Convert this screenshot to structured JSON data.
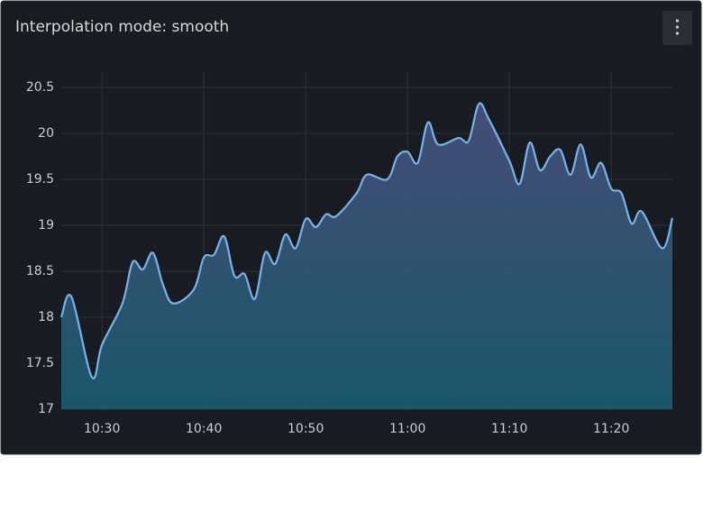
{
  "chart_data": {
    "type": "line",
    "title": "Interpolation mode: smooth",
    "x": [
      "10:26",
      "10:27",
      "10:29",
      "10:30",
      "10:32",
      "10:33",
      "10:34",
      "10:35",
      "10:36",
      "10:37",
      "10:39",
      "10:40",
      "10:41",
      "10:42",
      "10:43",
      "10:44",
      "10:45",
      "10:46",
      "10:47",
      "10:48",
      "10:49",
      "10:50",
      "10:51",
      "10:52",
      "10:53",
      "10:55",
      "10:56",
      "10:58",
      "10:59",
      "11:00",
      "11:01",
      "11:02",
      "11:03",
      "11:05",
      "11:06",
      "11:07",
      "11:08",
      "11:10",
      "11:11",
      "11:12",
      "11:13",
      "11:14",
      "11:15",
      "11:16",
      "11:17",
      "11:18",
      "11:19",
      "11:20",
      "11:21",
      "11:22",
      "11:23",
      "11:25",
      "11:26"
    ],
    "values": [
      18.0,
      18.22,
      17.35,
      17.7,
      18.15,
      18.6,
      18.52,
      18.7,
      18.35,
      18.15,
      18.3,
      18.65,
      18.68,
      18.88,
      18.45,
      18.47,
      18.2,
      18.7,
      18.58,
      18.9,
      18.75,
      19.07,
      18.98,
      19.12,
      19.1,
      19.35,
      19.55,
      19.5,
      19.75,
      19.8,
      19.68,
      20.12,
      19.88,
      19.95,
      19.92,
      20.32,
      20.15,
      19.7,
      19.45,
      19.9,
      19.6,
      19.75,
      19.82,
      19.55,
      19.88,
      19.52,
      19.68,
      19.4,
      19.35,
      19.02,
      19.15,
      18.75,
      19.08
    ],
    "color": "#73b4f0",
    "xlim": [
      "10:26",
      "11:26"
    ],
    "xticks": [
      "10:30",
      "10:40",
      "10:50",
      "11:00",
      "11:10",
      "11:20"
    ],
    "ylim": [
      17,
      20.5
    ],
    "yticks": [
      17,
      17.5,
      18,
      18.5,
      19,
      19.5,
      20,
      20.5
    ],
    "grid": true,
    "smooth": true
  }
}
